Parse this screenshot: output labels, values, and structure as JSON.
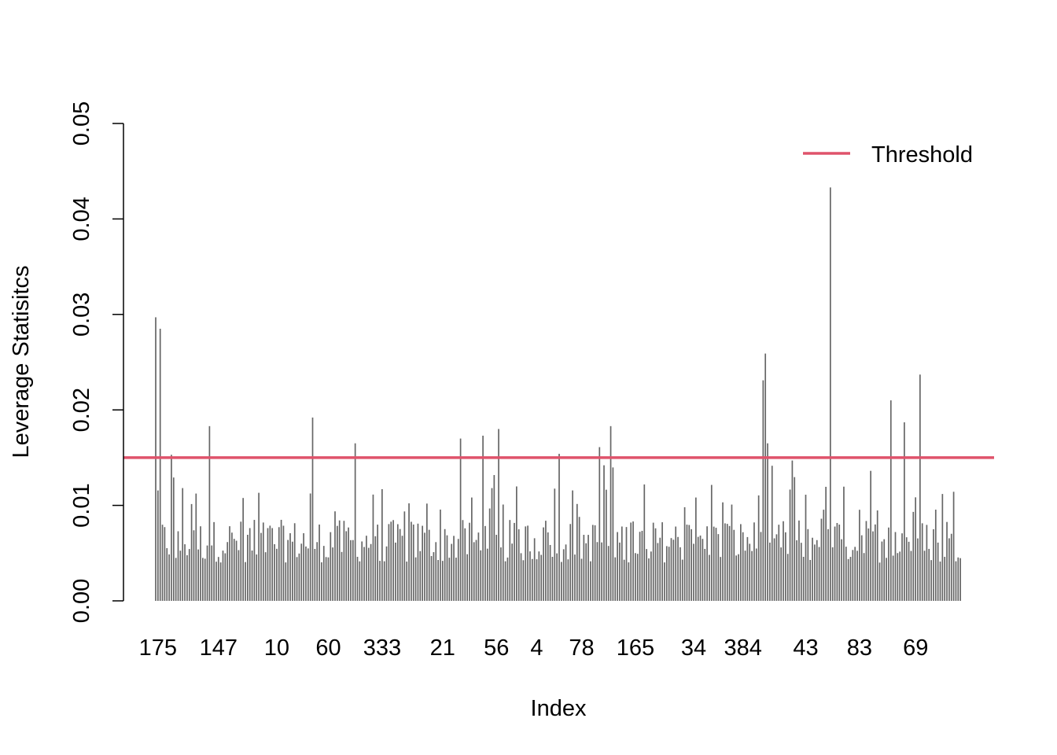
{
  "chart_data": {
    "type": "bar",
    "title": "",
    "xlabel": "Index",
    "ylabel": "Leverage Statisitcs",
    "ylim": [
      0,
      0.05
    ],
    "y_ticks": [
      "0.00",
      "0.01",
      "0.02",
      "0.03",
      "0.04",
      "0.05"
    ],
    "x_tick_labels": [
      "175",
      "147",
      "10",
      "60",
      "333",
      "21",
      "56",
      "4",
      "78",
      "165",
      "34",
      "384",
      "43",
      "83",
      "69"
    ],
    "x_tick_positions": [
      1,
      28,
      54,
      77,
      101,
      128,
      152,
      170,
      190,
      214,
      240,
      262,
      290,
      314,
      339
    ],
    "bar_color": "#666666",
    "threshold": {
      "name": "Threshold",
      "value": 0.015,
      "color": "#DF536B"
    },
    "legend_position": "top-right",
    "n_bars": 360,
    "spikes": [
      [
        0,
        0.0297
      ],
      [
        2,
        0.0285
      ],
      [
        7,
        0.0153
      ],
      [
        24,
        0.0183
      ],
      [
        70,
        0.0192
      ],
      [
        89,
        0.0165
      ],
      [
        136,
        0.017
      ],
      [
        146,
        0.0173
      ],
      [
        153,
        0.018
      ],
      [
        180,
        0.0154
      ],
      [
        198,
        0.0161
      ],
      [
        200,
        0.0142
      ],
      [
        203,
        0.0183
      ],
      [
        271,
        0.0231
      ],
      [
        272,
        0.0259
      ],
      [
        273,
        0.0165
      ],
      [
        284,
        0.0147
      ],
      [
        301,
        0.0433
      ],
      [
        328,
        0.021
      ],
      [
        334,
        0.0187
      ],
      [
        341,
        0.0237
      ]
    ]
  }
}
